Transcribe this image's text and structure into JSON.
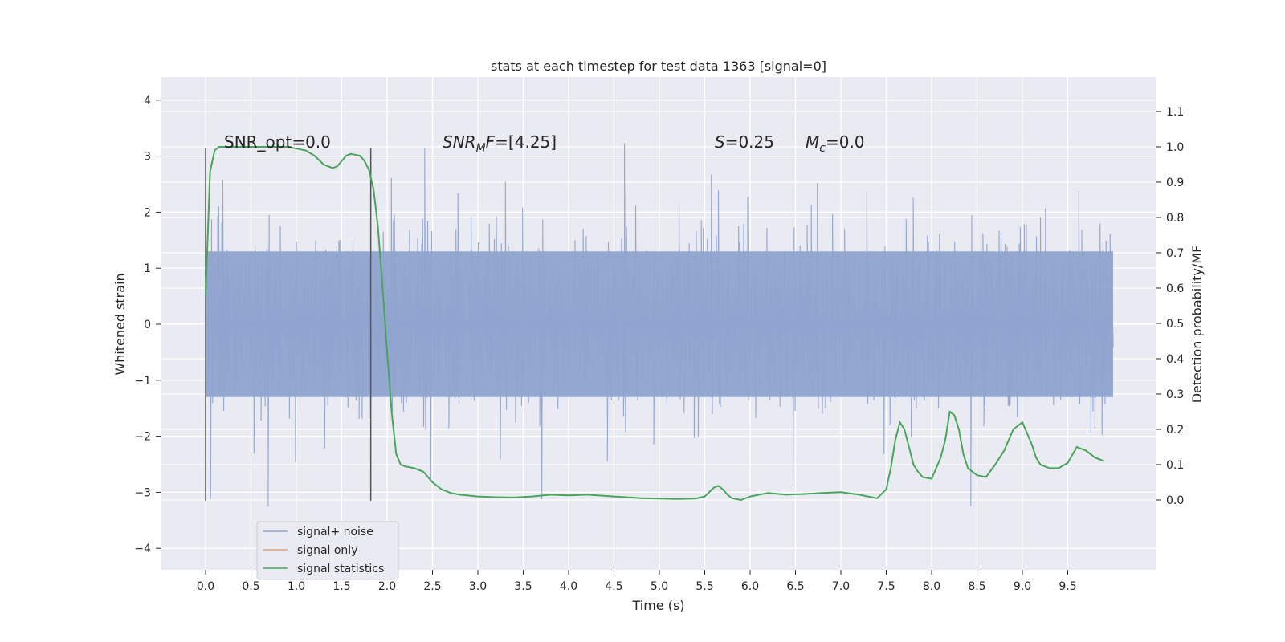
{
  "chart_data": {
    "type": "line",
    "title": "stats at each timestep for test data 1363 [signal=0]",
    "xlabel": "Time (s)",
    "ylabel": "Whitened strain",
    "ylabel_right": "Detection probability/MF",
    "xlim": [
      -0.5,
      10.5
    ],
    "ylim": [
      -4.4,
      4.4
    ],
    "ylim_right": [
      -0.2,
      1.2
    ],
    "x_ticks": [
      "0.0",
      "0.5",
      "1.0",
      "1.5",
      "2.0",
      "2.5",
      "3.0",
      "3.5",
      "4.0",
      "4.5",
      "5.0",
      "5.5",
      "6.0",
      "6.5",
      "7.0",
      "7.5",
      "8.0",
      "8.5",
      "9.0",
      "9.5"
    ],
    "y_ticks": [
      "4",
      "3",
      "2",
      "1",
      "0",
      "−1",
      "−2",
      "−3",
      "−4"
    ],
    "y_tick_values": [
      4,
      3,
      2,
      1,
      0,
      -1,
      -2,
      -3,
      -4
    ],
    "y_right_ticks": [
      "1.1",
      "1.0",
      "0.9",
      "0.8",
      "0.7",
      "0.6",
      "0.5",
      "0.4",
      "0.3",
      "0.2",
      "0.1",
      "0.0"
    ],
    "y_right_tick_values": [
      1.1,
      1.0,
      0.9,
      0.8,
      0.7,
      0.6,
      0.5,
      0.4,
      0.3,
      0.2,
      0.1,
      0.0
    ],
    "vlines": [
      0.0,
      1.82
    ],
    "vline_range": [
      -3.15,
      3.15
    ],
    "annotations": [
      {
        "id": "snr-opt",
        "html": "SNR_opt=0.0",
        "x": 0.2
      },
      {
        "id": "snr-mf",
        "x": 2.6,
        "parts": [
          "SNR",
          "M",
          "F=[4.25]"
        ]
      },
      {
        "id": "s",
        "x": 5.6,
        "parts": [
          "S",
          "=0.25"
        ]
      },
      {
        "id": "mc",
        "x": 6.6,
        "parts": [
          "M",
          "c",
          "=0.0"
        ]
      }
    ],
    "grid": true,
    "legend_placement": "lower-left",
    "series": [
      {
        "name": "signal+ noise",
        "color": "#8fa3cf",
        "description": "noise",
        "x_range": [
          0,
          10
        ],
        "amplitude_std": 1.0
      },
      {
        "name": "signal only",
        "color": "#e8a07c",
        "x": [],
        "y": []
      },
      {
        "name": "signal statistics",
        "color": "#4aa45c",
        "axis": "right",
        "x": [
          0.0,
          0.05,
          0.1,
          0.15,
          0.2,
          0.3,
          0.5,
          0.7,
          0.9,
          1.0,
          1.1,
          1.2,
          1.3,
          1.4,
          1.45,
          1.5,
          1.55,
          1.6,
          1.7,
          1.75,
          1.8,
          1.85,
          1.9,
          1.95,
          2.0,
          2.05,
          2.1,
          2.15,
          2.2,
          2.3,
          2.4,
          2.5,
          2.6,
          2.7,
          2.8,
          3.0,
          3.2,
          3.4,
          3.6,
          3.8,
          4.0,
          4.2,
          4.5,
          4.8,
          5.0,
          5.2,
          5.4,
          5.5,
          5.6,
          5.65,
          5.7,
          5.75,
          5.8,
          5.9,
          6.0,
          6.2,
          6.4,
          6.6,
          6.8,
          7.0,
          7.2,
          7.4,
          7.5,
          7.55,
          7.6,
          7.65,
          7.7,
          7.75,
          7.8,
          7.85,
          7.9,
          8.0,
          8.1,
          8.15,
          8.2,
          8.25,
          8.3,
          8.35,
          8.4,
          8.5,
          8.6,
          8.7,
          8.8,
          8.9,
          9.0,
          9.1,
          9.15,
          9.2,
          9.3,
          9.4,
          9.5,
          9.6,
          9.7,
          9.8,
          9.9
        ],
        "y": [
          0.58,
          0.93,
          0.99,
          1.0,
          1.0,
          1.0,
          1.0,
          1.0,
          1.0,
          0.995,
          0.99,
          0.975,
          0.95,
          0.94,
          0.945,
          0.96,
          0.975,
          0.98,
          0.975,
          0.96,
          0.935,
          0.88,
          0.77,
          0.6,
          0.42,
          0.25,
          0.13,
          0.1,
          0.095,
          0.09,
          0.08,
          0.05,
          0.03,
          0.02,
          0.015,
          0.01,
          0.008,
          0.007,
          0.01,
          0.015,
          0.013,
          0.015,
          0.01,
          0.005,
          0.004,
          0.003,
          0.004,
          0.01,
          0.035,
          0.04,
          0.03,
          0.015,
          0.005,
          0.0,
          0.01,
          0.02,
          0.015,
          0.017,
          0.02,
          0.022,
          0.015,
          0.005,
          0.03,
          0.09,
          0.17,
          0.22,
          0.2,
          0.15,
          0.1,
          0.08,
          0.065,
          0.06,
          0.12,
          0.17,
          0.25,
          0.24,
          0.2,
          0.13,
          0.09,
          0.07,
          0.065,
          0.1,
          0.14,
          0.2,
          0.22,
          0.16,
          0.12,
          0.1,
          0.09,
          0.09,
          0.105,
          0.15,
          0.14,
          0.12,
          0.11
        ]
      }
    ]
  }
}
